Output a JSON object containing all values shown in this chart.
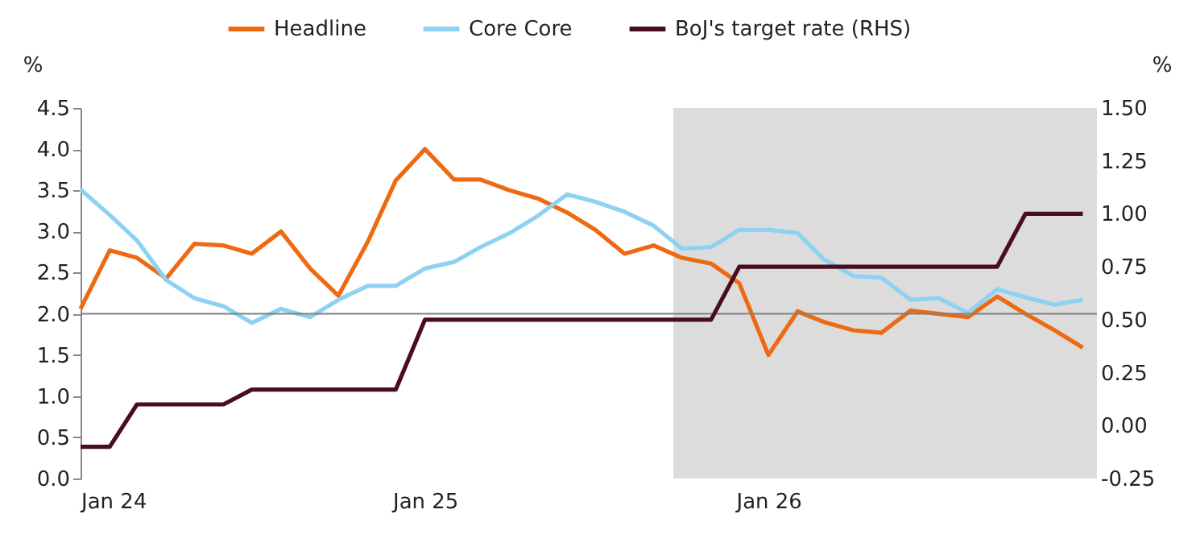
{
  "chart_data": {
    "type": "line",
    "x": [
      "2024-01",
      "2024-02",
      "2024-03",
      "2024-04",
      "2024-05",
      "2024-06",
      "2024-07",
      "2024-08",
      "2024-09",
      "2024-10",
      "2024-11",
      "2024-12",
      "2025-01",
      "2025-02",
      "2025-03",
      "2025-04",
      "2025-05",
      "2025-06",
      "2025-07",
      "2025-08",
      "2025-09",
      "2025-10",
      "2025-11",
      "2025-12",
      "2026-01",
      "2026-02",
      "2026-03",
      "2026-04",
      "2026-05",
      "2026-06",
      "2026-07",
      "2026-08",
      "2026-09",
      "2026-10",
      "2026-11",
      "2026-12"
    ],
    "series": [
      {
        "name": "Headline",
        "color": "#ee6a12",
        "values": [
          2.06,
          2.77,
          2.68,
          2.43,
          2.85,
          2.83,
          2.73,
          3.0,
          2.55,
          2.22,
          2.87,
          3.62,
          4.0,
          3.63,
          3.63,
          3.5,
          3.4,
          3.23,
          3.02,
          2.73,
          2.83,
          2.68,
          2.61,
          2.37,
          1.5,
          2.03,
          1.9,
          1.8,
          1.77,
          2.04,
          2.0,
          1.96,
          2.21,
          2.0,
          1.8,
          1.59
        ]
      },
      {
        "name": "Core Core",
        "color": "#8fd1f2",
        "values": [
          3.51,
          3.2,
          2.89,
          2.41,
          2.19,
          2.09,
          1.89,
          2.06,
          1.96,
          2.17,
          2.34,
          2.34,
          2.55,
          2.63,
          2.81,
          2.98,
          3.19,
          3.45,
          3.36,
          3.24,
          3.07,
          2.79,
          2.81,
          3.02,
          3.02,
          2.98,
          2.66,
          2.46,
          2.44,
          2.17,
          2.19,
          2.01,
          2.3,
          2.2,
          2.11,
          2.17
        ]
      },
      {
        "name": "BoJ's target rate (RHS)",
        "color": "#4a0d20",
        "axis": "y2",
        "values": [
          -0.1,
          -0.1,
          0.1,
          0.1,
          0.1,
          0.1,
          0.17,
          0.17,
          0.17,
          0.17,
          0.17,
          0.17,
          0.5,
          0.5,
          0.5,
          0.5,
          0.5,
          0.5,
          0.5,
          0.5,
          0.5,
          0.5,
          0.5,
          0.75,
          0.75,
          0.75,
          0.75,
          0.75,
          0.75,
          0.75,
          0.75,
          0.75,
          0.75,
          1.0,
          1.0,
          1.0
        ]
      }
    ],
    "xlim": [
      "2024-01-01",
      "2026-12-16"
    ],
    "xticks": [
      {
        "value": "2024-01",
        "label": "Jan 24"
      },
      {
        "value": "2025-01",
        "label": "Jan 25"
      },
      {
        "value": "2026-01",
        "label": "Jan 26"
      }
    ],
    "ylim": [
      0,
      4.5
    ],
    "yticks": [
      {
        "value": 0,
        "label": "0.0"
      },
      0.5,
      {
        "value": 1,
        "label": "1.0"
      },
      1.5,
      {
        "value": 2,
        "label": "2.0"
      },
      2.5,
      {
        "value": 3,
        "label": "3.0"
      },
      3.5,
      {
        "value": 4,
        "label": "4.0"
      },
      4.5
    ],
    "y2lim": [
      -0.25,
      1.5
    ],
    "y2ticks": [
      {
        "value": -0.25,
        "label": "-0.25"
      },
      {
        "value": 0,
        "label": "0.00"
      },
      {
        "value": 0.25,
        "label": "0.25"
      },
      {
        "value": 0.5,
        "label": "0.50"
      },
      {
        "value": 0.75,
        "label": "0.75"
      },
      {
        "value": 1,
        "label": "1.00"
      },
      {
        "value": 1.25,
        "label": "1.25"
      },
      {
        "value": 1.5,
        "label": "1.50"
      }
    ],
    "ylabel": "%",
    "y2label": "%",
    "ref_lines": [
      {
        "axis": "y",
        "value": 2.0,
        "label": null,
        "color": "#808080"
      }
    ],
    "bands": [
      {
        "axis": "x",
        "from": "2025-09-22",
        "to": "2026-12-16",
        "label": null,
        "color": "#dcdcdc"
      }
    ],
    "legend": "top",
    "grid": false
  }
}
